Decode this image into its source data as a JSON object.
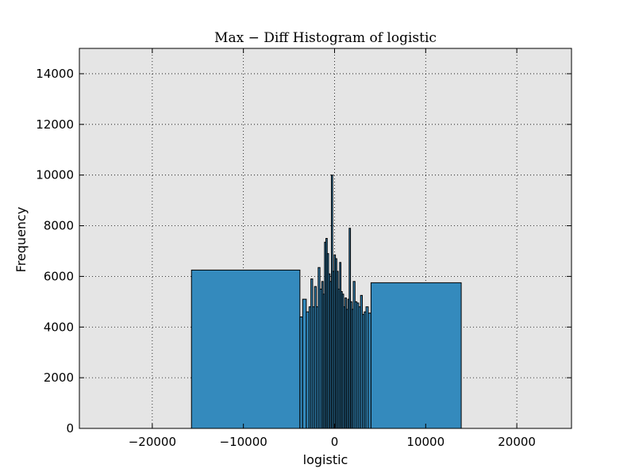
{
  "chart_data": {
    "type": "bar",
    "title": "Max − Diff Histogram of logistic",
    "xlabel": "logistic",
    "ylabel": "Frequency",
    "xlim": [
      -28000,
      26000
    ],
    "ylim": [
      0,
      15000
    ],
    "xticks": [
      -20000,
      -10000,
      0,
      10000,
      20000
    ],
    "xtick_labels": [
      "−20000",
      "−10000",
      "0",
      "10000",
      "20000"
    ],
    "yticks": [
      0,
      2000,
      4000,
      6000,
      8000,
      10000,
      12000,
      14000
    ],
    "ytick_labels": [
      "0",
      "2000",
      "4000",
      "6000",
      "8000",
      "10000",
      "12000",
      "14000"
    ],
    "grid": true,
    "background_color": "#e5e5e5",
    "bar_color": "#348abd",
    "bins": [
      {
        "x0": -15700,
        "x1": -3800,
        "value": 6250
      },
      {
        "x0": -3800,
        "x1": -3500,
        "value": 4400
      },
      {
        "x0": -3500,
        "x1": -3100,
        "value": 5100
      },
      {
        "x0": -3100,
        "x1": -2800,
        "value": 4600
      },
      {
        "x0": -2800,
        "x1": -2600,
        "value": 4800
      },
      {
        "x0": -2600,
        "x1": -2400,
        "value": 5900
      },
      {
        "x0": -2400,
        "x1": -2200,
        "value": 4800
      },
      {
        "x0": -2200,
        "x1": -2000,
        "value": 5600
      },
      {
        "x0": -2000,
        "x1": -1800,
        "value": 4800
      },
      {
        "x0": -1800,
        "x1": -1600,
        "value": 6350
      },
      {
        "x0": -1600,
        "x1": -1400,
        "value": 5500
      },
      {
        "x0": -1400,
        "x1": -1250,
        "value": 5800
      },
      {
        "x0": -1250,
        "x1": -1100,
        "value": 5300
      },
      {
        "x0": -1100,
        "x1": -950,
        "value": 7350
      },
      {
        "x0": -950,
        "x1": -800,
        "value": 7500
      },
      {
        "x0": -800,
        "x1": -650,
        "value": 6900
      },
      {
        "x0": -650,
        "x1": -500,
        "value": 6100
      },
      {
        "x0": -500,
        "x1": -350,
        "value": 5800
      },
      {
        "x0": -350,
        "x1": -200,
        "value": 10000
      },
      {
        "x0": -200,
        "x1": -50,
        "value": 6200
      },
      {
        "x0": -50,
        "x1": 100,
        "value": 6850
      },
      {
        "x0": 100,
        "x1": 250,
        "value": 6700
      },
      {
        "x0": 250,
        "x1": 400,
        "value": 6200
      },
      {
        "x0": 400,
        "x1": 550,
        "value": 5500
      },
      {
        "x0": 550,
        "x1": 700,
        "value": 6550
      },
      {
        "x0": 700,
        "x1": 850,
        "value": 5400
      },
      {
        "x0": 850,
        "x1": 1000,
        "value": 5300
      },
      {
        "x0": 1000,
        "x1": 1150,
        "value": 4800
      },
      {
        "x0": 1150,
        "x1": 1300,
        "value": 5150
      },
      {
        "x0": 1300,
        "x1": 1450,
        "value": 4700
      },
      {
        "x0": 1450,
        "x1": 1600,
        "value": 5100
      },
      {
        "x0": 1600,
        "x1": 1750,
        "value": 7900
      },
      {
        "x0": 1750,
        "x1": 1900,
        "value": 5000
      },
      {
        "x0": 1900,
        "x1": 2050,
        "value": 4700
      },
      {
        "x0": 2050,
        "x1": 2250,
        "value": 5800
      },
      {
        "x0": 2250,
        "x1": 2450,
        "value": 5000
      },
      {
        "x0": 2450,
        "x1": 2650,
        "value": 4950
      },
      {
        "x0": 2650,
        "x1": 2850,
        "value": 4800
      },
      {
        "x0": 2850,
        "x1": 3050,
        "value": 5250
      },
      {
        "x0": 3050,
        "x1": 3250,
        "value": 4500
      },
      {
        "x0": 3250,
        "x1": 3450,
        "value": 4600
      },
      {
        "x0": 3450,
        "x1": 3700,
        "value": 4800
      },
      {
        "x0": 3700,
        "x1": 4000,
        "value": 4550
      },
      {
        "x0": 4000,
        "x1": 13900,
        "value": 5750
      }
    ]
  }
}
